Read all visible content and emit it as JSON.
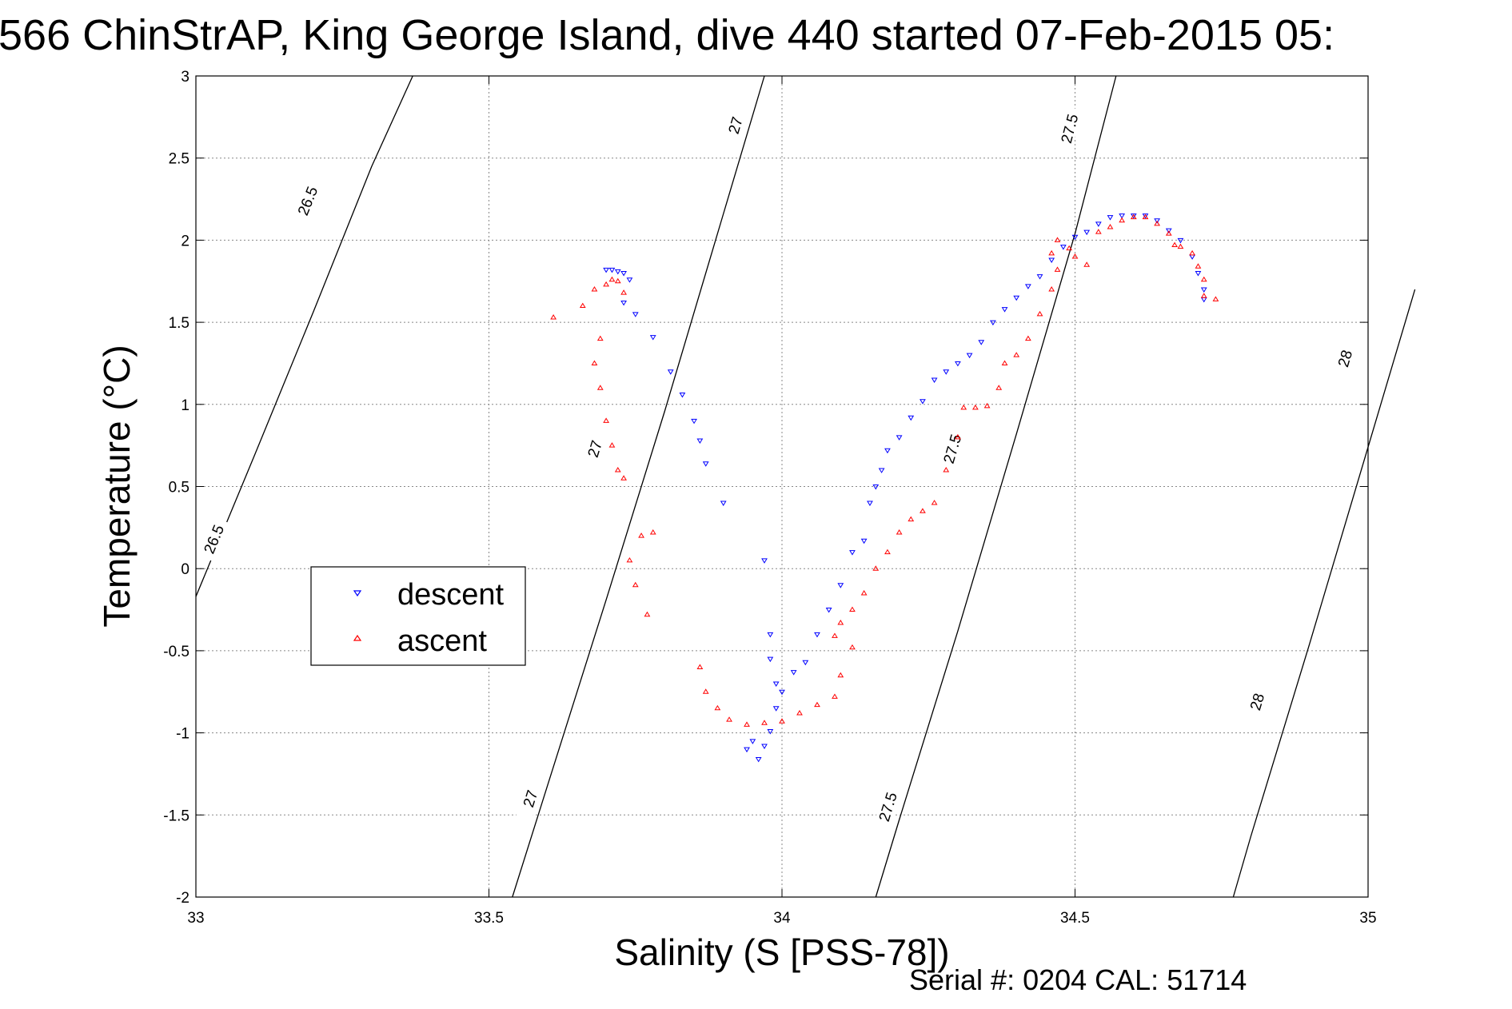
{
  "chart_data": {
    "type": "scatter",
    "title": "566 ChinStrAP, King George Island, dive 440 started 07-Feb-2015 05:",
    "xlabel": "Salinity (S [PSS-78])",
    "ylabel": "Temperature (°C)",
    "xlim": [
      33,
      35
    ],
    "ylim": [
      -2,
      3
    ],
    "xticks": [
      "33",
      "33.5",
      "34",
      "34.5",
      "35"
    ],
    "yticks": [
      "-2",
      "-1.5",
      "-1",
      "-0.5",
      "0",
      "0.5",
      "1",
      "1.5",
      "2",
      "2.5",
      "3"
    ],
    "grid": true,
    "legend_position": "center-left",
    "footer": "Serial #: 0204  CAL: 51714",
    "density_contours": [
      {
        "label": "26.5",
        "points": [
          [
            33.0,
            -0.17
          ],
          [
            33.1,
            0.69
          ],
          [
            33.2,
            1.56
          ],
          [
            33.3,
            2.45
          ],
          [
            33.37,
            3.0
          ]
        ],
        "label_at": [
          [
            33.19,
            2.24
          ],
          [
            33.03,
            0.18
          ]
        ]
      },
      {
        "label": "27",
        "points": [
          [
            33.54,
            -2.0
          ],
          [
            33.6,
            -1.32
          ],
          [
            33.7,
            -0.19
          ],
          [
            33.8,
            0.96
          ],
          [
            33.9,
            2.16
          ],
          [
            33.97,
            3.0
          ]
        ],
        "label_at": [
          [
            33.57,
            -1.4
          ],
          [
            33.68,
            0.73
          ],
          [
            33.92,
            2.7
          ]
        ]
      },
      {
        "label": "27.5",
        "points": [
          [
            34.16,
            -2.0
          ],
          [
            34.2,
            -1.53
          ],
          [
            34.3,
            -0.38
          ],
          [
            34.4,
            0.82
          ],
          [
            34.5,
            2.04
          ],
          [
            34.57,
            3.0
          ]
        ],
        "label_at": [
          [
            34.18,
            -1.45
          ],
          [
            34.29,
            0.73
          ],
          [
            34.49,
            2.68
          ]
        ]
      },
      {
        "label": "28",
        "points": [
          [
            34.77,
            -2.0
          ],
          [
            34.8,
            -1.63
          ],
          [
            34.9,
            -0.46
          ],
          [
            35.0,
            0.74
          ],
          [
            35.08,
            1.7
          ]
        ],
        "label_at": [
          [
            34.81,
            -0.81
          ],
          [
            34.96,
            1.28
          ]
        ]
      }
    ],
    "series": [
      {
        "name": "descent",
        "color": "#0000ff",
        "marker": "triangle-down",
        "points": [
          [
            33.7,
            1.82
          ],
          [
            33.71,
            1.82
          ],
          [
            33.72,
            1.81
          ],
          [
            33.73,
            1.8
          ],
          [
            33.74,
            1.76
          ],
          [
            33.73,
            1.62
          ],
          [
            33.75,
            1.55
          ],
          [
            33.78,
            1.41
          ],
          [
            33.81,
            1.2
          ],
          [
            33.83,
            1.06
          ],
          [
            33.85,
            0.9
          ],
          [
            33.86,
            0.78
          ],
          [
            33.87,
            0.64
          ],
          [
            33.9,
            0.4
          ],
          [
            33.97,
            0.05
          ],
          [
            33.98,
            -0.4
          ],
          [
            33.98,
            -0.55
          ],
          [
            33.99,
            -0.7
          ],
          [
            33.99,
            -0.85
          ],
          [
            33.98,
            -0.99
          ],
          [
            33.97,
            -1.08
          ],
          [
            33.96,
            -1.16
          ],
          [
            33.94,
            -1.1
          ],
          [
            33.95,
            -1.05
          ],
          [
            34.0,
            -0.75
          ],
          [
            34.02,
            -0.63
          ],
          [
            34.04,
            -0.57
          ],
          [
            34.06,
            -0.4
          ],
          [
            34.08,
            -0.25
          ],
          [
            34.1,
            -0.1
          ],
          [
            34.12,
            0.1
          ],
          [
            34.14,
            0.17
          ],
          [
            34.15,
            0.4
          ],
          [
            34.16,
            0.5
          ],
          [
            34.17,
            0.6
          ],
          [
            34.18,
            0.72
          ],
          [
            34.2,
            0.8
          ],
          [
            34.22,
            0.92
          ],
          [
            34.24,
            1.02
          ],
          [
            34.26,
            1.15
          ],
          [
            34.28,
            1.2
          ],
          [
            34.3,
            1.25
          ],
          [
            34.32,
            1.3
          ],
          [
            34.34,
            1.38
          ],
          [
            34.36,
            1.5
          ],
          [
            34.38,
            1.58
          ],
          [
            34.4,
            1.65
          ],
          [
            34.42,
            1.72
          ],
          [
            34.44,
            1.78
          ],
          [
            34.46,
            1.88
          ],
          [
            34.48,
            1.96
          ],
          [
            34.5,
            2.02
          ],
          [
            34.52,
            2.05
          ],
          [
            34.54,
            2.1
          ],
          [
            34.56,
            2.14
          ],
          [
            34.58,
            2.15
          ],
          [
            34.6,
            2.15
          ],
          [
            34.62,
            2.15
          ],
          [
            34.64,
            2.12
          ],
          [
            34.66,
            2.06
          ],
          [
            34.68,
            2.0
          ],
          [
            34.7,
            1.9
          ],
          [
            34.71,
            1.8
          ],
          [
            34.72,
            1.7
          ],
          [
            34.72,
            1.64
          ]
        ]
      },
      {
        "name": "ascent",
        "color": "#ff0000",
        "marker": "triangle-up",
        "points": [
          [
            33.61,
            1.53
          ],
          [
            33.66,
            1.6
          ],
          [
            33.68,
            1.7
          ],
          [
            33.7,
            1.73
          ],
          [
            33.71,
            1.76
          ],
          [
            33.72,
            1.75
          ],
          [
            33.73,
            1.68
          ],
          [
            33.69,
            1.4
          ],
          [
            33.68,
            1.25
          ],
          [
            33.69,
            1.1
          ],
          [
            33.7,
            0.9
          ],
          [
            33.71,
            0.75
          ],
          [
            33.72,
            0.6
          ],
          [
            33.73,
            0.55
          ],
          [
            33.76,
            0.2
          ],
          [
            33.78,
            0.22
          ],
          [
            33.74,
            0.05
          ],
          [
            33.75,
            -0.1
          ],
          [
            33.77,
            -0.28
          ],
          [
            33.86,
            -0.6
          ],
          [
            33.87,
            -0.75
          ],
          [
            33.89,
            -0.85
          ],
          [
            33.91,
            -0.92
          ],
          [
            33.94,
            -0.95
          ],
          [
            33.97,
            -0.94
          ],
          [
            34.0,
            -0.93
          ],
          [
            34.03,
            -0.88
          ],
          [
            34.06,
            -0.83
          ],
          [
            34.09,
            -0.78
          ],
          [
            34.1,
            -0.65
          ],
          [
            34.12,
            -0.48
          ],
          [
            34.09,
            -0.41
          ],
          [
            34.1,
            -0.33
          ],
          [
            34.12,
            -0.25
          ],
          [
            34.14,
            -0.15
          ],
          [
            34.16,
            0.0
          ],
          [
            34.18,
            0.1
          ],
          [
            34.2,
            0.22
          ],
          [
            34.22,
            0.3
          ],
          [
            34.24,
            0.35
          ],
          [
            34.26,
            0.4
          ],
          [
            34.28,
            0.6
          ],
          [
            34.3,
            0.8
          ],
          [
            34.31,
            0.98
          ],
          [
            34.33,
            0.98
          ],
          [
            34.35,
            0.99
          ],
          [
            34.37,
            1.1
          ],
          [
            34.38,
            1.25
          ],
          [
            34.4,
            1.3
          ],
          [
            34.42,
            1.4
          ],
          [
            34.44,
            1.55
          ],
          [
            34.46,
            1.7
          ],
          [
            34.47,
            1.82
          ],
          [
            34.46,
            1.92
          ],
          [
            34.47,
            2.0
          ],
          [
            34.49,
            1.95
          ],
          [
            34.5,
            1.9
          ],
          [
            34.52,
            1.85
          ],
          [
            34.54,
            2.05
          ],
          [
            34.56,
            2.08
          ],
          [
            34.58,
            2.12
          ],
          [
            34.6,
            2.14
          ],
          [
            34.62,
            2.14
          ],
          [
            34.64,
            2.1
          ],
          [
            34.66,
            2.04
          ],
          [
            34.67,
            1.97
          ],
          [
            34.68,
            1.96
          ],
          [
            34.7,
            1.92
          ],
          [
            34.71,
            1.84
          ],
          [
            34.72,
            1.76
          ],
          [
            34.72,
            1.66
          ],
          [
            34.74,
            1.64
          ]
        ]
      }
    ]
  }
}
